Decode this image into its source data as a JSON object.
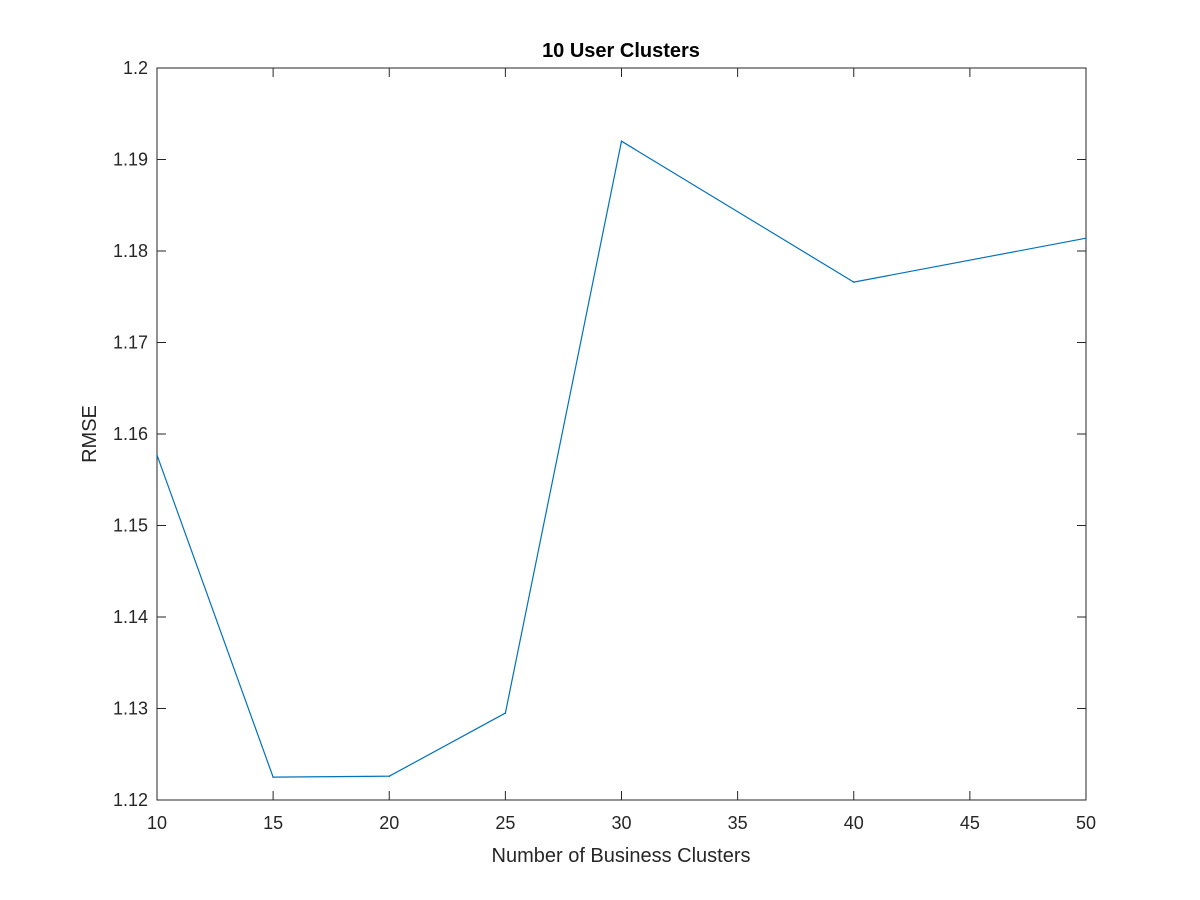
{
  "chart_data": {
    "type": "line",
    "title": "10 User Clusters",
    "xlabel": "Number of Business Clusters",
    "ylabel": "RMSE",
    "xlim": [
      10,
      50
    ],
    "ylim": [
      1.12,
      1.2
    ],
    "xticks": [
      "10",
      "15",
      "20",
      "25",
      "30",
      "35",
      "40",
      "45",
      "50"
    ],
    "yticks": [
      "1.12",
      "1.13",
      "1.14",
      "1.15",
      "1.16",
      "1.17",
      "1.18",
      "1.19",
      "1.2"
    ],
    "grid": false,
    "series": [
      {
        "color": "#0072bd",
        "x": [
          10,
          15,
          20,
          25,
          30,
          40,
          50
        ],
        "y": [
          1.1577,
          1.1225,
          1.1226,
          1.1295,
          1.192,
          1.1766,
          1.1814
        ]
      }
    ]
  },
  "colors": {
    "axes": "#262626",
    "line": "#0072bd",
    "background": "#ffffff"
  }
}
